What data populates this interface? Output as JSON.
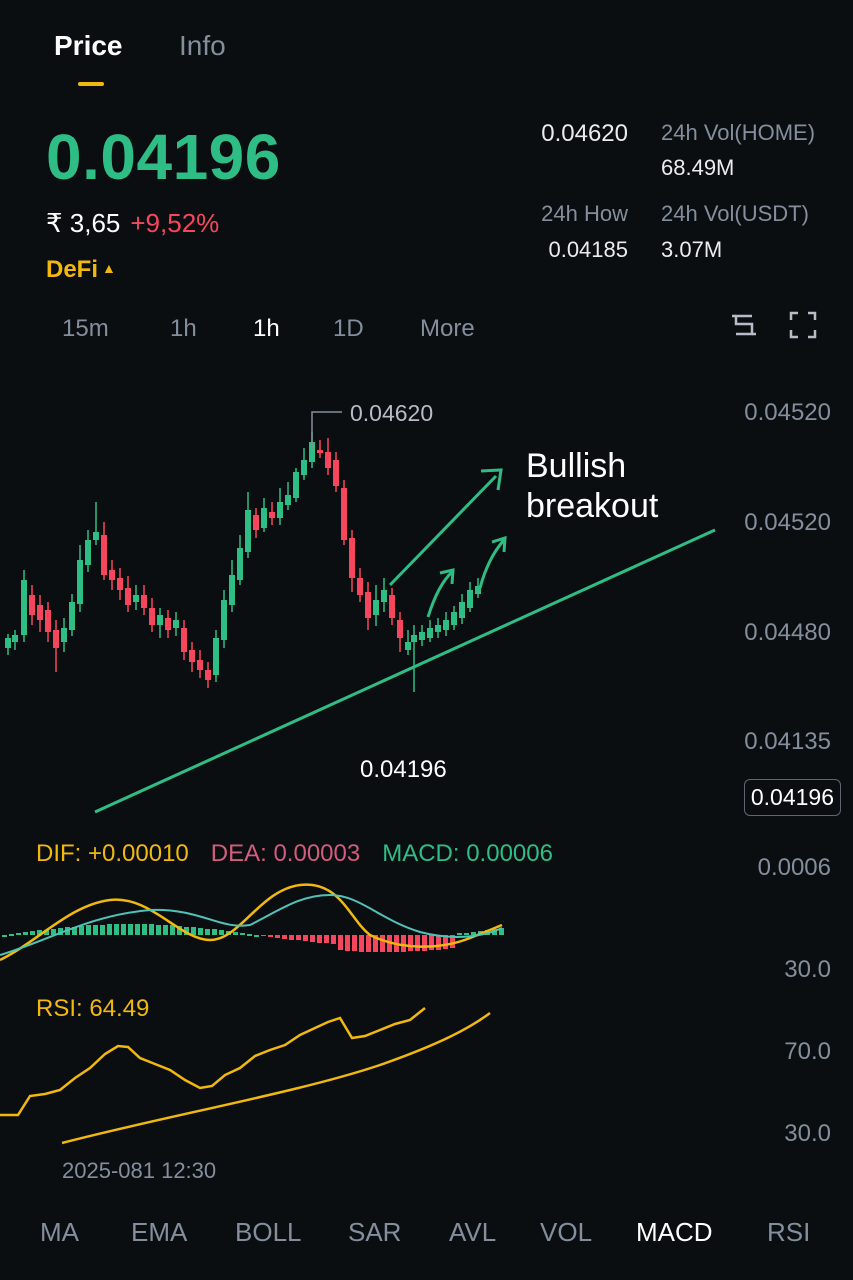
{
  "tabs": [
    {
      "label": "Price",
      "active": true
    },
    {
      "label": "Info",
      "active": false
    }
  ],
  "ticker": {
    "last_price": "0.04196",
    "fiat_price": "₹ 3,65",
    "change_pct": "+9,52%",
    "tag": "DeFi",
    "high_value": "0.04620",
    "low_label": "24h How",
    "low_value": "0.04185",
    "vol_home_label": "24h Vol(HOME)",
    "vol_home_value": "68.49M",
    "vol_usdt_label": "24h Vol(USDT)",
    "vol_usdt_value": "3.07M"
  },
  "intervals": [
    {
      "label": "15m",
      "active": false
    },
    {
      "label": "1h",
      "active": false
    },
    {
      "label": "1h",
      "active": true
    },
    {
      "label": "1D",
      "active": false
    },
    {
      "label": "More",
      "active": false
    }
  ],
  "icons": {
    "settings": "settings-icon",
    "fullscreen": "fullscreen-icon"
  },
  "price_axis": [
    "0.04520",
    "0.04520",
    "0.04480",
    "0.04135"
  ],
  "current_price": "0.04196",
  "peak_label": "0.04620",
  "low_label": "0.04196",
  "annotation": "Bullish breakout",
  "macd": {
    "dif": "DIF: +0.00010",
    "dea": "DEA: 0.00003",
    "macd": "MACD: 0.00006",
    "axis_top": "0.0006",
    "axis_bottom": "30.0"
  },
  "rsi": {
    "label": "RSI: 64.49",
    "axis_top": "70.0",
    "axis_bottom": "30.0"
  },
  "date_label": "2025-081 12:30",
  "indicators": [
    {
      "label": "MA",
      "active": false
    },
    {
      "label": "EMA",
      "active": false
    },
    {
      "label": "BOLL",
      "active": false
    },
    {
      "label": "SAR",
      "active": false
    },
    {
      "label": "AVL",
      "active": false
    },
    {
      "label": "VOL",
      "active": false
    },
    {
      "label": "MACD",
      "active": true
    },
    {
      "label": "RSI",
      "active": false
    }
  ],
  "colors": {
    "up": "#2ebd85",
    "down": "#f6465d",
    "accent": "#f0b90b",
    "background": "#0b0e11"
  }
}
